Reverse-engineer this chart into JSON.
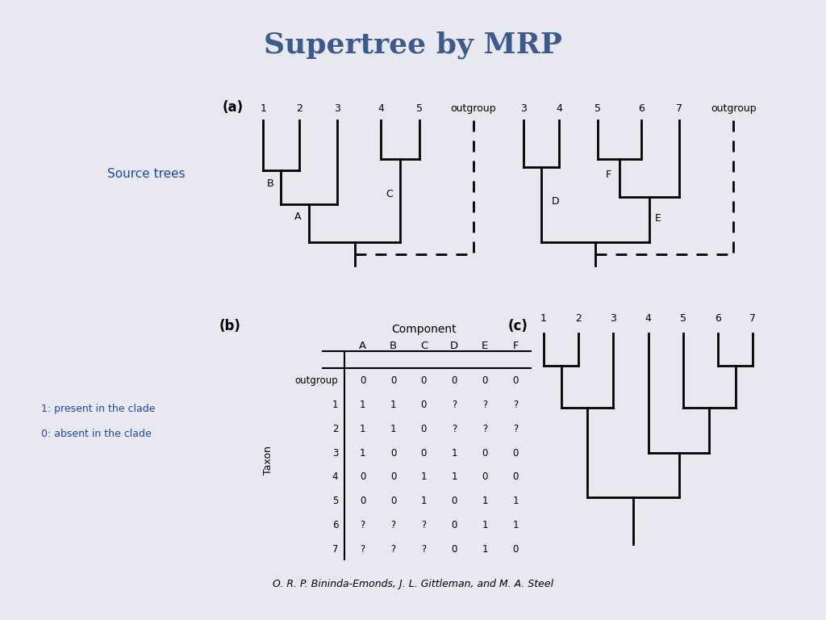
{
  "title": "Supertree by MRP",
  "title_color": "#3d5a8a",
  "bg_color": "#e8e8f0",
  "panel_bg": "#ffffff",
  "source_trees_label": "Source trees",
  "label_1_present": "1: present in the clade",
  "label_0_absent": "0: absent in the clade",
  "citation": "O. R. P. Bininda-Emonds, J. L. Gittleman, and M. A. Steel",
  "tree1_taxa": [
    "1",
    "2",
    "3",
    "4",
    "5",
    "outgroup"
  ],
  "tree2_taxa": [
    "3",
    "4",
    "5",
    "6",
    "7",
    "outgroup"
  ],
  "supertree_taxa": [
    "1",
    "2",
    "3",
    "4",
    "5",
    "6",
    "7"
  ],
  "matrix_components": [
    "A",
    "B",
    "C",
    "D",
    "E",
    "F"
  ],
  "matrix_taxa": [
    "outgroup",
    "1",
    "2",
    "3",
    "4",
    "5",
    "6",
    "7"
  ],
  "matrix_data": [
    [
      "0",
      "0",
      "0",
      "0",
      "0",
      "0"
    ],
    [
      "1",
      "1",
      "0",
      "?",
      "?",
      "?"
    ],
    [
      "1",
      "1",
      "0",
      "?",
      "?",
      "?"
    ],
    [
      "1",
      "0",
      "0",
      "1",
      "0",
      "0"
    ],
    [
      "0",
      "0",
      "1",
      "1",
      "0",
      "0"
    ],
    [
      "0",
      "0",
      "1",
      "0",
      "1",
      "1"
    ],
    [
      "?",
      "?",
      "?",
      "0",
      "1",
      "1"
    ],
    [
      "?",
      "?",
      "?",
      "0",
      "1",
      "0"
    ]
  ]
}
